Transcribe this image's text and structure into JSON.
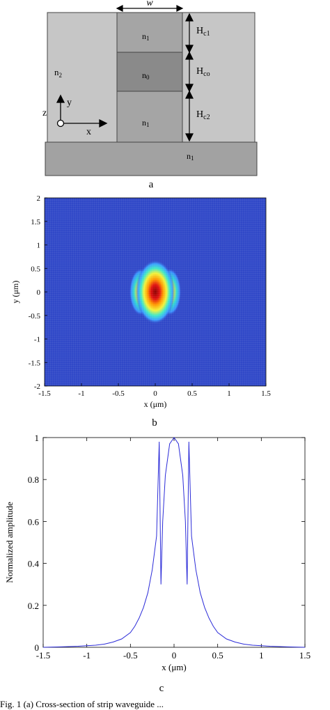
{
  "figure": {
    "panel_a": {
      "label": "a",
      "width_label": "w",
      "layers": [
        {
          "label": "n",
          "sub": "1"
        },
        {
          "label": "n",
          "sub": "0"
        },
        {
          "label": "n",
          "sub": "1"
        }
      ],
      "cladding_label": {
        "label": "n",
        "sub": "2"
      },
      "substrate_label": {
        "label": "n",
        "sub": "1"
      },
      "heights": [
        {
          "label": "H",
          "sub": "c1"
        },
        {
          "label": "H",
          "sub": "co"
        },
        {
          "label": "H",
          "sub": "c2"
        }
      ],
      "axes": {
        "x": "x",
        "y": "y",
        "z": "z"
      },
      "colors": {
        "cladding": "#c6c6c6",
        "core_outer": "#a5a5a5",
        "core_center": "#8a8a8a",
        "substrate": "#a2a2a2"
      }
    },
    "panel_b": {
      "label": "b",
      "colormap": "jet"
    },
    "panel_c": {
      "label": "c"
    },
    "caption_fragment": "Fig. 1  (a)  Cross-section of strip waveguide ..."
  },
  "chart_data": [
    {
      "type": "heatmap",
      "xlabel": "x (μm)",
      "ylabel": "y (μm)",
      "xlim": [
        -1.5,
        1.5
      ],
      "ylim": [
        -2,
        2
      ],
      "xticks": [
        "-1.5",
        "-1",
        "-0.5",
        "0",
        "0.5",
        "1",
        "1.5"
      ],
      "yticks": [
        "2",
        "1.5",
        "1",
        "0.5",
        "0",
        "-0.5",
        "-1",
        "-1.5",
        "-2"
      ],
      "field_peak": {
        "x": 0,
        "y": 0
      },
      "side_lobes_x": [
        -0.2,
        0.2
      ],
      "background_color": "#3048c8"
    },
    {
      "type": "line",
      "xlabel": "x (μm)",
      "ylabel": "Normalized amplitude",
      "xlim": [
        -1.5,
        1.5
      ],
      "ylim": [
        0,
        1
      ],
      "xticks": [
        "-1.5",
        "-1",
        "-0.5",
        "0",
        "0.5",
        "1",
        "1.5"
      ],
      "yticks": [
        "0",
        "0.2",
        "0.4",
        "0.6",
        "0.8",
        "1"
      ],
      "series": [
        {
          "color": "#2b2bd8",
          "x": [
            -1.5,
            -1.3,
            -1.1,
            -0.9,
            -0.8,
            -0.7,
            -0.6,
            -0.5,
            -0.45,
            -0.4,
            -0.35,
            -0.3,
            -0.25,
            -0.2,
            -0.17,
            -0.15,
            -0.13,
            -0.1,
            -0.05,
            0,
            0.05,
            0.1,
            0.13,
            0.15,
            0.17,
            0.2,
            0.25,
            0.3,
            0.35,
            0.4,
            0.45,
            0.5,
            0.6,
            0.7,
            0.8,
            0.9,
            1.1,
            1.3,
            1.5
          ],
          "y": [
            0.0,
            0.002,
            0.005,
            0.01,
            0.015,
            0.025,
            0.04,
            0.07,
            0.1,
            0.14,
            0.19,
            0.26,
            0.37,
            0.53,
            0.98,
            0.3,
            0.6,
            0.82,
            0.97,
            1.0,
            0.97,
            0.82,
            0.6,
            0.3,
            0.98,
            0.53,
            0.37,
            0.26,
            0.19,
            0.14,
            0.1,
            0.07,
            0.04,
            0.025,
            0.015,
            0.01,
            0.005,
            0.002,
            0.0
          ]
        }
      ]
    }
  ]
}
